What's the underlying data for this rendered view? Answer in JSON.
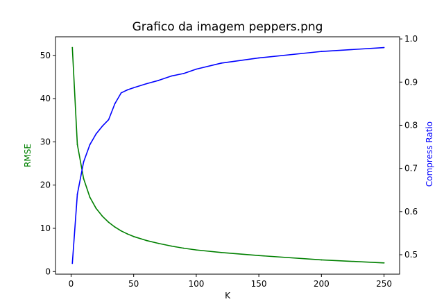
{
  "chart_data": {
    "type": "line",
    "title": "Grafico da imagem peppers.png",
    "xlabel": "K",
    "ylabel_left": "RMSE",
    "ylabel_right": "Compress Ratio",
    "xlim": [
      -12.45,
      262.45
    ],
    "ylim_left": [
      -0.6,
      54.3
    ],
    "ylim_right": [
      0.455,
      1.005
    ],
    "x_ticks": [
      0,
      50,
      100,
      150,
      200,
      250
    ],
    "y_left_ticks": [
      0,
      10,
      20,
      30,
      40,
      50
    ],
    "y_right_ticks": [
      0.5,
      0.6,
      0.7,
      0.8,
      0.9,
      1.0
    ],
    "y_right_tick_labels": [
      "0.5",
      "0.6",
      "0.7",
      "0.8",
      "0.9",
      "1.0"
    ],
    "grid": false,
    "colors": {
      "rmse": "#008000",
      "compress": "#0000ff"
    },
    "series": [
      {
        "axis": "left",
        "color": "#008000",
        "x": [
          1,
          5,
          10,
          15,
          20,
          25,
          30,
          35,
          40,
          45,
          50,
          60,
          70,
          80,
          90,
          100,
          120,
          150,
          200,
          250
        ],
        "values": [
          51.8,
          29.4,
          21.5,
          17.2,
          14.6,
          12.8,
          11.4,
          10.3,
          9.4,
          8.7,
          8.1,
          7.2,
          6.5,
          5.9,
          5.4,
          5.0,
          4.4,
          3.7,
          2.7,
          2.0
        ]
      },
      {
        "axis": "right",
        "color": "#0000ff",
        "x": [
          1,
          5,
          10,
          15,
          20,
          25,
          30,
          35,
          40,
          45,
          50,
          60,
          70,
          80,
          90,
          100,
          120,
          150,
          200,
          250
        ],
        "values": [
          0.48,
          0.64,
          0.715,
          0.755,
          0.78,
          0.798,
          0.813,
          0.85,
          0.875,
          0.882,
          0.887,
          0.896,
          0.904,
          0.914,
          0.92,
          0.93,
          0.944,
          0.956,
          0.971,
          0.98
        ]
      }
    ]
  }
}
